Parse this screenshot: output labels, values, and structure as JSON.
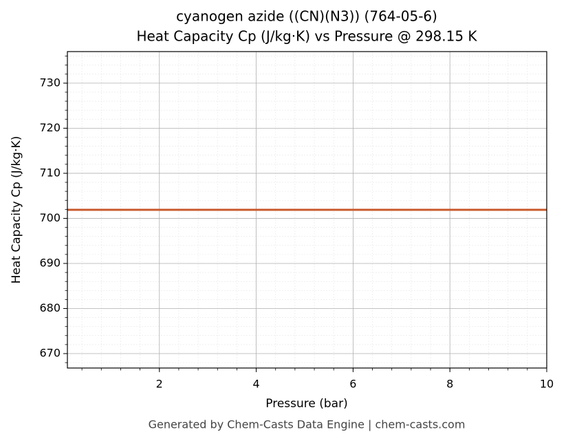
{
  "chart_data": {
    "type": "line",
    "title": "cyanogen azide ((CN)(N3)) (764-05-6)",
    "subtitle": "Heat Capacity Cp (J/kg·K) vs Pressure @ 298.15 K",
    "x_label": "Pressure (bar)",
    "y_label": "Heat Capacity Cp (J/kg·K)",
    "footer": "Generated by Chem-Casts Data Engine | chem-casts.com",
    "x": [
      0.1,
      10
    ],
    "series": [
      {
        "name": "Cp",
        "color": "#c8582b",
        "values": [
          701.9,
          701.9
        ]
      }
    ],
    "xlim": [
      0.1,
      10
    ],
    "xticks": [
      2,
      4,
      6,
      8,
      10
    ],
    "ylim": [
      666.8,
      737
    ],
    "yticks": [
      670,
      680,
      690,
      700,
      710,
      720,
      730
    ],
    "grid": true
  }
}
